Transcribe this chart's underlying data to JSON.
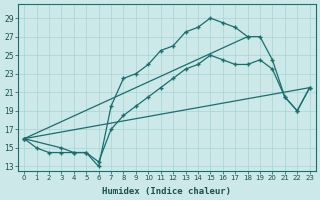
{
  "xlabel": "Humidex (Indice chaleur)",
  "bg_color": "#cce8e8",
  "line_color": "#1a6e6e",
  "grid_color": "#a8d4d4",
  "spine_color": "#1a6e6e",
  "xlim": [
    -0.5,
    23.5
  ],
  "ylim": [
    12.5,
    30.5
  ],
  "yticks": [
    13,
    15,
    17,
    19,
    21,
    23,
    25,
    27,
    29
  ],
  "xticks": [
    0,
    1,
    2,
    3,
    4,
    5,
    6,
    7,
    8,
    9,
    10,
    11,
    12,
    13,
    14,
    15,
    16,
    17,
    18,
    19,
    20,
    21,
    22,
    23
  ],
  "curve1_x": [
    0,
    1,
    2,
    3,
    4,
    5,
    6,
    7,
    8,
    9,
    10,
    11,
    12,
    13,
    14,
    15,
    16,
    17,
    18
  ],
  "curve1_y": [
    16,
    15,
    14.5,
    14.5,
    14.5,
    14.5,
    13,
    19.5,
    22.5,
    23,
    24,
    25.5,
    26,
    27.5,
    28,
    29,
    28.5,
    28,
    27
  ],
  "curve2_x": [
    0,
    18,
    19,
    20,
    21,
    22,
    23
  ],
  "curve2_y": [
    16,
    27,
    27,
    24.5,
    20.5,
    19,
    21.5
  ],
  "curve3_x": [
    0,
    3,
    4,
    5,
    6,
    7,
    8,
    9,
    10,
    11,
    12,
    13,
    14,
    15,
    16,
    17,
    18,
    19,
    20,
    21,
    22,
    23
  ],
  "curve3_y": [
    16,
    15,
    14.5,
    14.5,
    13.5,
    17,
    18.5,
    19.5,
    20.5,
    21.5,
    22.5,
    23.5,
    24,
    25,
    24.5,
    24,
    24,
    24.5,
    23.5,
    20.5,
    19,
    21.5
  ],
  "curve4_x": [
    0,
    23
  ],
  "curve4_y": [
    16,
    21.5
  ]
}
